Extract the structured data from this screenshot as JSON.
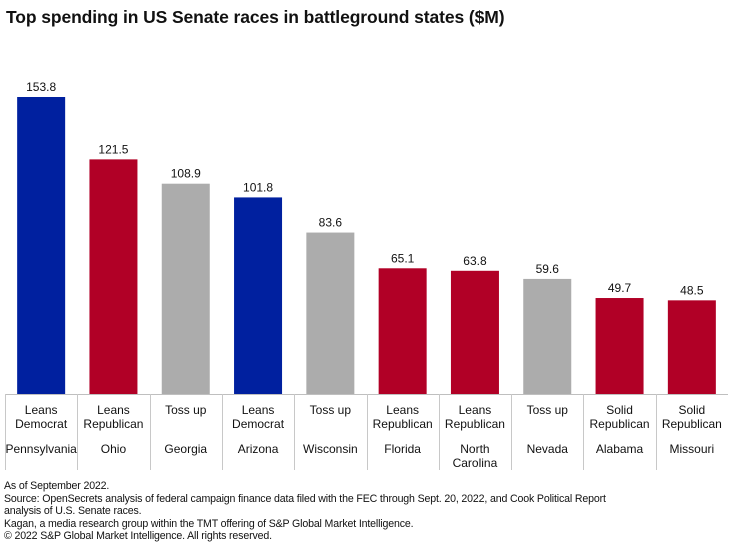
{
  "chart_data": {
    "type": "bar",
    "title": "Top spending in US Senate races in battleground states ($M)",
    "xlabel": "",
    "ylabel": "",
    "ylim": [
      0,
      153.8
    ],
    "grid": false,
    "legend": "none",
    "categories": [
      "Pennsylvania",
      "Ohio",
      "Georgia",
      "Arizona",
      "Wisconsin",
      "Florida",
      "North Carolina",
      "Nevada",
      "Alabama",
      "Missouri"
    ],
    "category_lines": [
      [
        "Pennsylvania"
      ],
      [
        "Ohio"
      ],
      [
        "Georgia"
      ],
      [
        "Arizona"
      ],
      [
        "Wisconsin"
      ],
      [
        "Florida"
      ],
      [
        "North",
        "Carolina"
      ],
      [
        "Nevada"
      ],
      [
        "Alabama"
      ],
      [
        "Missouri"
      ]
    ],
    "ratings": [
      "Leans Democrat",
      "Leans Republican",
      "Toss up",
      "Leans Democrat",
      "Toss up",
      "Leans Republican",
      "Leans Republican",
      "Toss up",
      "Solid Republican",
      "Solid Republican"
    ],
    "rating_lines": [
      [
        "Leans",
        "Democrat"
      ],
      [
        "Leans",
        "Republican"
      ],
      [
        "Toss up"
      ],
      [
        "Leans",
        "Democrat"
      ],
      [
        "Toss up"
      ],
      [
        "Leans",
        "Republican"
      ],
      [
        "Leans",
        "Republican"
      ],
      [
        "Toss up"
      ],
      [
        "Solid",
        "Republican"
      ],
      [
        "Solid",
        "Republican"
      ]
    ],
    "values": [
      153.8,
      121.5,
      108.9,
      101.8,
      83.6,
      65.1,
      63.8,
      59.6,
      49.7,
      48.5
    ],
    "value_labels": [
      "153.8",
      "121.5",
      "108.9",
      "101.8",
      "83.6",
      "65.1",
      "63.8",
      "59.6",
      "49.7",
      "48.5"
    ],
    "rating_colors": {
      "Leans Democrat": "#00209F",
      "Leans Republican": "#B10026",
      "Solid Republican": "#B10026",
      "Toss up": "#ACACAC"
    }
  },
  "footnotes": [
    "As of September 2022.",
    "Source: OpenSecrets analysis of federal campaign finance data filed with the FEC through Sept. 20, 2022, and Cook Political Report",
    "analysis of U.S. Senate races.",
    "Kagan, a media research group within the TMT offering of S&P Global Market Intelligence.",
    "© 2022 S&P Global Market Intelligence. All rights reserved."
  ]
}
